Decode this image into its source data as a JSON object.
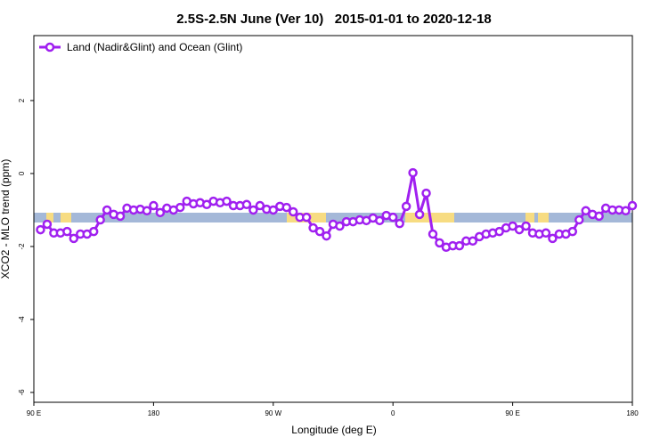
{
  "chart_data": {
    "type": "line",
    "title": "2.5S-2.5N June (Ver 10)   2015-01-01 to 2020-12-18",
    "xlabel": "Longitude (deg E)",
    "ylabel": "XCO2 - MLO trend (ppm)",
    "x": [
      95,
      100,
      105,
      110,
      115,
      120,
      125,
      130,
      135,
      140,
      145,
      150,
      155,
      160,
      165,
      170,
      175,
      180,
      185,
      190,
      195,
      200,
      205,
      210,
      215,
      220,
      225,
      230,
      235,
      240,
      245,
      250,
      255,
      260,
      265,
      270,
      275,
      280,
      285,
      290,
      295,
      300,
      305,
      310,
      315,
      320,
      325,
      330,
      335,
      340,
      345,
      350,
      355,
      360,
      365,
      370,
      375,
      380,
      385,
      390,
      395,
      400,
      405,
      410,
      415,
      420,
      425,
      430,
      435,
      440,
      445,
      450,
      455,
      460,
      465,
      470,
      475,
      480,
      485,
      490,
      495,
      500,
      505,
      510,
      515,
      520,
      525,
      530,
      535,
      540
    ],
    "series": [
      {
        "name": "Land (Nadir&Glint) and Ocean (Glint)",
        "color": "#a020f0",
        "values": [
          -1.54,
          -1.39,
          -1.63,
          -1.63,
          -1.59,
          -1.78,
          -1.66,
          -1.66,
          -1.59,
          -1.27,
          -1.0,
          -1.12,
          -1.17,
          -0.95,
          -1.0,
          -0.98,
          -1.02,
          -0.88,
          -1.07,
          -0.95,
          -1.0,
          -0.93,
          -0.76,
          -0.83,
          -0.8,
          -0.85,
          -0.76,
          -0.8,
          -0.76,
          -0.88,
          -0.88,
          -0.85,
          -1.0,
          -0.88,
          -0.98,
          -1.0,
          -0.9,
          -0.93,
          -1.05,
          -1.2,
          -1.2,
          -1.49,
          -1.59,
          -1.71,
          -1.39,
          -1.44,
          -1.32,
          -1.32,
          -1.27,
          -1.29,
          -1.22,
          -1.29,
          -1.15,
          -1.2,
          -1.37,
          -0.9,
          0.02,
          -1.12,
          -0.54,
          -1.66,
          -1.9,
          -2.02,
          -1.98,
          -1.98,
          -1.85,
          -1.85,
          -1.73,
          -1.66,
          -1.63,
          -1.59,
          -1.49,
          -1.44,
          -1.54,
          -1.44,
          -1.63,
          -1.66,
          -1.63,
          -1.78,
          -1.66,
          -1.66,
          -1.59,
          -1.27,
          -1.02,
          -1.12,
          -1.17,
          -0.95,
          -1.0,
          -1.0,
          -1.02,
          -0.88
        ]
      }
    ],
    "xlim": [
      90,
      540
    ],
    "xticks": [
      {
        "value": 90,
        "label": "90 E"
      },
      {
        "value": 180,
        "label": "180"
      },
      {
        "value": 270,
        "label": "90 W"
      },
      {
        "value": 360,
        "label": "0"
      },
      {
        "value": 450,
        "label": "90 E"
      },
      {
        "value": 540,
        "label": "180"
      }
    ],
    "ylim": [
      -6.27,
      3.78
    ],
    "yticks": [
      -6,
      -4,
      -2,
      0,
      2
    ],
    "legend": "top-left"
  }
}
